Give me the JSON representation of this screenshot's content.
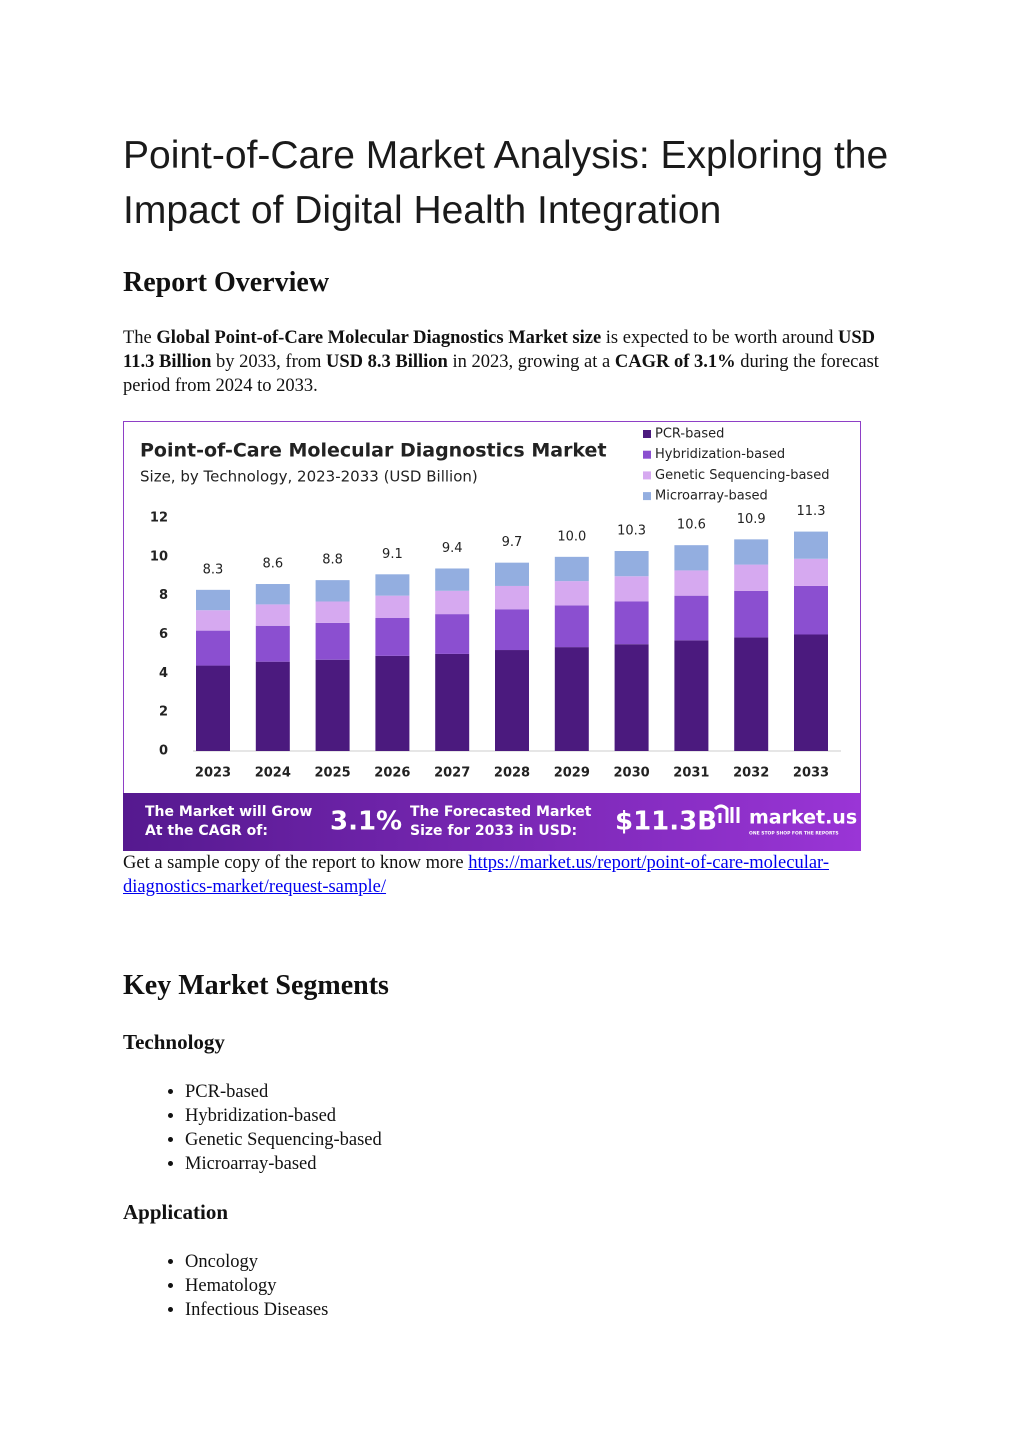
{
  "header": {
    "title": "Point-of-Care Market Analysis: Exploring the Impact of Digital Health Integration"
  },
  "overview": {
    "heading": "Report Overview",
    "runs": [
      "The ",
      "Global Point-of-Care Molecular Diagnostics Market size",
      " is expected to be worth around ",
      "USD 11.3 Billion",
      " by 2033, from ",
      "USD 8.3 Billion",
      " in 2023, growing at a ",
      "CAGR of 3.1%",
      " during the forecast period from 2024 to 2033."
    ]
  },
  "chart_data": {
    "type": "stacked_bar",
    "title": "Point-of-Care Molecular Diagnostics Market",
    "subtitle": "Size, by Technology, 2023-2033 (USD Billion)",
    "categories": [
      "2023",
      "2024",
      "2025",
      "2026",
      "2027",
      "2028",
      "2029",
      "2030",
      "2031",
      "2032",
      "2033"
    ],
    "series": [
      {
        "name": "PCR-based",
        "color": "#4b1a7e",
        "values": [
          4.4,
          4.6,
          4.7,
          4.9,
          5.0,
          5.2,
          5.35,
          5.5,
          5.7,
          5.85,
          6.0
        ]
      },
      {
        "name": "Hybridization-based",
        "color": "#8b4fd0",
        "values": [
          1.8,
          1.85,
          1.9,
          1.95,
          2.05,
          2.1,
          2.15,
          2.2,
          2.3,
          2.4,
          2.5
        ]
      },
      {
        "name": "Genetic Sequencing-based",
        "color": "#d6a9f0",
        "values": [
          1.05,
          1.1,
          1.1,
          1.15,
          1.2,
          1.2,
          1.25,
          1.3,
          1.3,
          1.35,
          1.4
        ]
      },
      {
        "name": "Microarray-based",
        "color": "#93aee0",
        "values": [
          1.05,
          1.05,
          1.1,
          1.1,
          1.15,
          1.2,
          1.25,
          1.3,
          1.3,
          1.3,
          1.4
        ]
      }
    ],
    "totals": [
      8.3,
      8.6,
      8.8,
      9.1,
      9.4,
      9.7,
      10,
      10.3,
      10.6,
      10.9,
      11.3
    ],
    "total_labels": [
      "8.3",
      "8.6",
      "8.8",
      "9.1",
      "9.4",
      "9.7",
      "10.0",
      "10.3",
      "10.6",
      "10.9",
      "11.3"
    ],
    "ylim": [
      0,
      12
    ],
    "yticks": [
      0,
      2,
      4,
      6,
      8,
      10,
      12
    ],
    "banner": {
      "cagr_label": [
        "The Market will Grow",
        "At the CAGR of:"
      ],
      "cagr": "3.1%",
      "size_label": [
        "The Forecasted Market",
        "Size for 2033 in USD:"
      ],
      "size": "$11.3B",
      "brand": "market.us",
      "tagline": "ONE STOP SHOP FOR THE REPORTS"
    }
  },
  "sample": {
    "text": "Get a sample copy of the report to know more ",
    "link": "https://market.us/report/point-of-care-molecular-diagnostics-market/request-sample/"
  },
  "segments": {
    "heading": "Key Market Segments",
    "groups": [
      {
        "title": "Technology",
        "items": [
          "PCR-based",
          "Hybridization-based",
          "Genetic Sequencing-based",
          "Microarray-based"
        ]
      },
      {
        "title": "Application",
        "items": [
          "Oncology",
          "Hematology",
          "Infectious Diseases"
        ]
      }
    ]
  }
}
